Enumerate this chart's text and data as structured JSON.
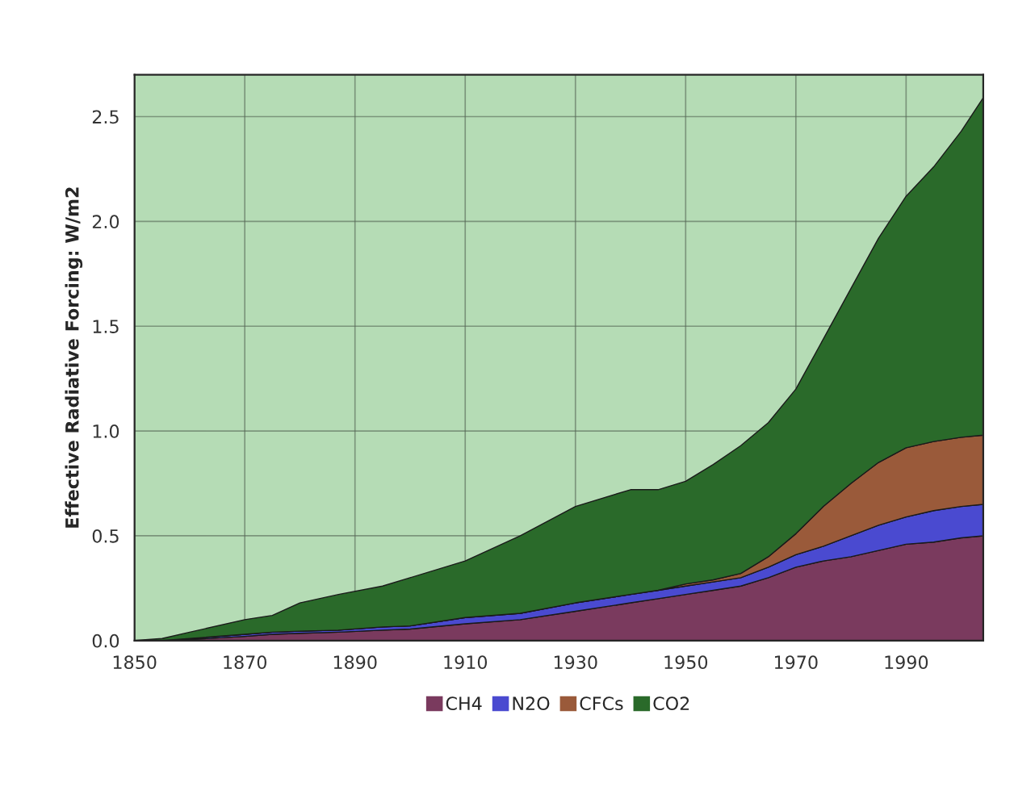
{
  "chart_data": {
    "type": "area",
    "stacked": true,
    "ylabel": "Effective Radiative Forcing: W/m2",
    "x": [
      1850,
      1855,
      1860,
      1870,
      1875,
      1880,
      1887,
      1895,
      1900,
      1910,
      1920,
      1930,
      1940,
      1945,
      1950,
      1955,
      1960,
      1965,
      1970,
      1975,
      1980,
      1985,
      1990,
      1995,
      2000,
      2004
    ],
    "series": [
      {
        "name": "CH4",
        "color": "#7a3a5e",
        "values": [
          0,
          0,
          0.005,
          0.02,
          0.03,
          0.035,
          0.04,
          0.05,
          0.055,
          0.08,
          0.1,
          0.14,
          0.18,
          0.2,
          0.22,
          0.24,
          0.26,
          0.3,
          0.35,
          0.38,
          0.4,
          0.43,
          0.46,
          0.47,
          0.49,
          0.5
        ]
      },
      {
        "name": "N2O",
        "color": "#4a4ad0",
        "values": [
          0,
          0,
          0.005,
          0.01,
          0.01,
          0.01,
          0.01,
          0.015,
          0.015,
          0.03,
          0.03,
          0.04,
          0.04,
          0.04,
          0.04,
          0.04,
          0.04,
          0.05,
          0.06,
          0.07,
          0.1,
          0.12,
          0.13,
          0.15,
          0.15,
          0.15
        ]
      },
      {
        "name": "CFCs",
        "color": "#9a5a3a",
        "values": [
          0,
          0,
          0,
          0,
          0,
          0,
          0,
          0,
          0,
          0,
          0,
          0,
          0,
          0,
          0.01,
          0.01,
          0.02,
          0.05,
          0.1,
          0.19,
          0.25,
          0.3,
          0.33,
          0.33,
          0.33,
          0.33
        ]
      },
      {
        "name": "CO2",
        "color": "#2a6a2a",
        "values": [
          0,
          0.01,
          0.03,
          0.07,
          0.08,
          0.135,
          0.17,
          0.195,
          0.23,
          0.27,
          0.37,
          0.46,
          0.5,
          0.48,
          0.49,
          0.55,
          0.61,
          0.64,
          0.69,
          0.8,
          0.93,
          1.07,
          1.2,
          1.31,
          1.46,
          1.61
        ]
      }
    ],
    "xlim": [
      1850,
      2004
    ],
    "xticks": [
      1850,
      1870,
      1890,
      1910,
      1930,
      1950,
      1970,
      1990
    ],
    "ylim": [
      0,
      2.7
    ],
    "yticks": [
      {
        "value": 0,
        "label": "0.0"
      },
      {
        "value": 0.5,
        "label": "0.5"
      },
      {
        "value": 1.0,
        "label": "1.0"
      },
      {
        "value": 1.5,
        "label": "1.5"
      },
      {
        "value": 2.0,
        "label": "2.0"
      },
      {
        "value": 2.5,
        "label": "2.5"
      }
    ],
    "grid": true,
    "legend": "bottom"
  }
}
